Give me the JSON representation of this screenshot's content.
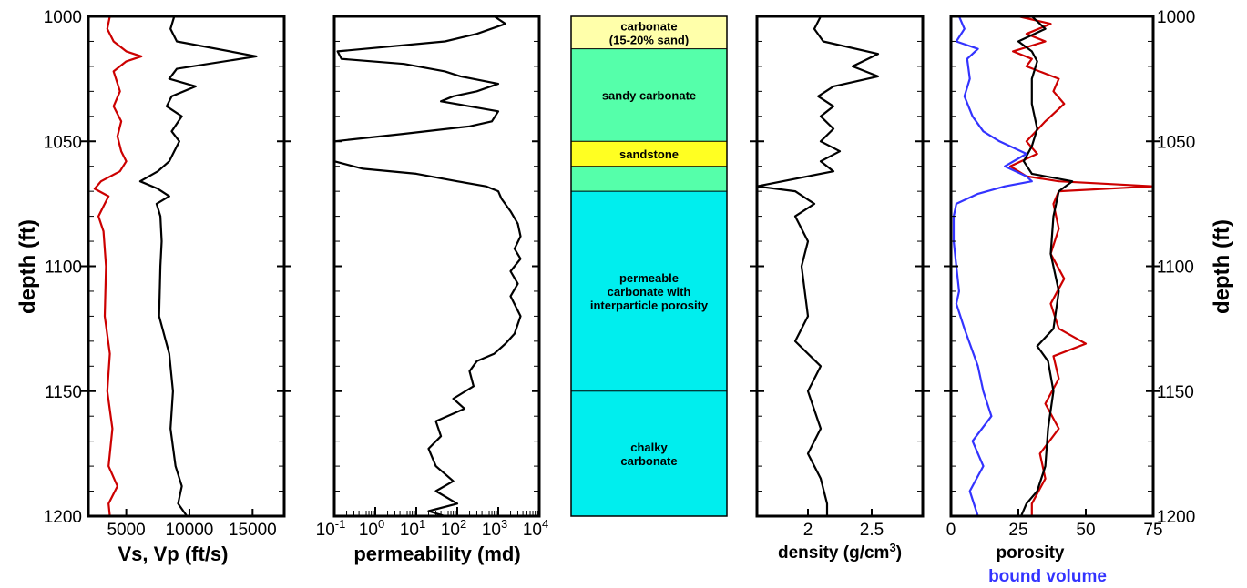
{
  "chart_data": [
    {
      "type": "line",
      "panel": "velocity",
      "ylabel": "depth (ft)",
      "xlabel": "Vs, Vp (ft/s)",
      "xlim": [
        2000,
        17500
      ],
      "ylim": [
        1000,
        1200
      ],
      "y_inverted": true,
      "xticks": [
        "5000",
        "10000",
        "15000"
      ],
      "yticks": [
        "1000",
        "1050",
        "1100",
        "1150",
        "1200"
      ],
      "series": [
        {
          "color": "#cc0000",
          "points": [
            [
              3700,
              1000
            ],
            [
              3500,
              1005
            ],
            [
              4000,
              1010
            ],
            [
              5000,
              1014
            ],
            [
              6200,
              1016
            ],
            [
              5000,
              1018
            ],
            [
              4000,
              1022
            ],
            [
              4500,
              1030
            ],
            [
              4000,
              1036
            ],
            [
              4600,
              1042
            ],
            [
              4300,
              1048
            ],
            [
              4600,
              1054
            ],
            [
              5000,
              1058
            ],
            [
              4500,
              1062
            ],
            [
              3000,
              1066
            ],
            [
              2500,
              1069
            ],
            [
              3600,
              1072
            ],
            [
              3200,
              1076
            ],
            [
              2800,
              1080
            ],
            [
              3200,
              1086
            ],
            [
              3400,
              1100
            ],
            [
              3300,
              1120
            ],
            [
              3700,
              1135
            ],
            [
              3500,
              1150
            ],
            [
              3900,
              1165
            ],
            [
              3600,
              1180
            ],
            [
              4300,
              1188
            ],
            [
              3600,
              1195
            ],
            [
              3700,
              1200
            ]
          ]
        },
        {
          "color": "#000000",
          "points": [
            [
              8800,
              1000
            ],
            [
              8500,
              1005
            ],
            [
              9000,
              1010
            ],
            [
              15300,
              1016
            ],
            [
              9000,
              1021
            ],
            [
              8400,
              1025
            ],
            [
              10500,
              1028
            ],
            [
              8600,
              1032
            ],
            [
              8200,
              1036
            ],
            [
              9400,
              1040
            ],
            [
              8600,
              1046
            ],
            [
              9200,
              1050
            ],
            [
              8800,
              1054
            ],
            [
              8400,
              1058
            ],
            [
              7500,
              1062
            ],
            [
              6100,
              1066
            ],
            [
              7500,
              1069
            ],
            [
              8400,
              1072
            ],
            [
              7400,
              1075
            ],
            [
              7700,
              1080
            ],
            [
              7800,
              1090
            ],
            [
              7700,
              1100
            ],
            [
              7600,
              1120
            ],
            [
              8400,
              1135
            ],
            [
              8700,
              1150
            ],
            [
              8500,
              1165
            ],
            [
              8900,
              1180
            ],
            [
              9400,
              1188
            ],
            [
              9100,
              1195
            ],
            [
              9800,
              1200
            ]
          ]
        }
      ]
    },
    {
      "type": "line",
      "panel": "permeability",
      "xlabel": "permeability (md)",
      "xscale": "log",
      "xlim": [
        0.1,
        10000
      ],
      "ylim": [
        1000,
        1200
      ],
      "xticks": [
        "10",
        "10",
        "10",
        "10",
        "10",
        "10"
      ],
      "xtick_exponents": [
        "-1",
        "0",
        "1",
        "2",
        "3",
        "4"
      ],
      "series": [
        {
          "color": "#000000",
          "points": [
            [
              800,
              1000
            ],
            [
              1500,
              1003
            ],
            [
              300,
              1007
            ],
            [
              50,
              1010
            ],
            [
              0.12,
              1014
            ],
            [
              0.15,
              1017
            ],
            [
              5,
              1019
            ],
            [
              50,
              1022
            ],
            [
              120,
              1024
            ],
            [
              1000,
              1027
            ],
            [
              300,
              1030
            ],
            [
              80,
              1032
            ],
            [
              40,
              1034
            ],
            [
              200,
              1036
            ],
            [
              1000,
              1038
            ],
            [
              700,
              1042
            ],
            [
              200,
              1044
            ],
            [
              5,
              1047
            ],
            [
              0.1,
              1050
            ]
          ],
          "gap_after": true
        },
        {
          "color": "#000000",
          "points": [
            [
              0.1,
              1058
            ],
            [
              0.5,
              1061
            ],
            [
              10,
              1063
            ],
            [
              100,
              1066
            ],
            [
              500,
              1068
            ],
            [
              1000,
              1070
            ],
            [
              1200,
              1073
            ],
            [
              2000,
              1078
            ],
            [
              3000,
              1083
            ],
            [
              3500,
              1088
            ],
            [
              2500,
              1093
            ],
            [
              3500,
              1097
            ],
            [
              2000,
              1102
            ],
            [
              3000,
              1107
            ],
            [
              2000,
              1112
            ],
            [
              3500,
              1120
            ],
            [
              2500,
              1127
            ],
            [
              1500,
              1131
            ],
            [
              800,
              1135
            ],
            [
              300,
              1138
            ],
            [
              200,
              1142
            ],
            [
              250,
              1148
            ],
            [
              80,
              1153
            ],
            [
              150,
              1157
            ],
            [
              30,
              1162
            ],
            [
              40,
              1168
            ],
            [
              20,
              1173
            ],
            [
              30,
              1180
            ],
            [
              80,
              1186
            ],
            [
              30,
              1190
            ],
            [
              100,
              1195
            ],
            [
              20,
              1198
            ],
            [
              50,
              1200
            ]
          ]
        }
      ]
    },
    {
      "type": "table",
      "panel": "lithology",
      "units": [
        {
          "label": "carbonate\n(15-20% sand)",
          "top": 1000,
          "base": 1013,
          "color": "#ffffaa"
        },
        {
          "label": "sandy carbonate",
          "top": 1013,
          "base": 1050,
          "color": "#55ffaa"
        },
        {
          "label": "sandstone",
          "top": 1050,
          "base": 1060,
          "color": "#ffff22"
        },
        {
          "label": "",
          "top": 1060,
          "base": 1070,
          "color": "#55ffaa"
        },
        {
          "label": "permeable\ncarbonate with\ninterparticle porosity",
          "top": 1070,
          "base": 1150,
          "color": "#00eeee"
        },
        {
          "label": "chalky\ncarbonate",
          "top": 1150,
          "base": 1200,
          "color": "#00eeee"
        }
      ]
    },
    {
      "type": "line",
      "panel": "density",
      "xlabel": "density (g/cm",
      "xlabel_superscript": "3",
      "xlabel_suffix": ")",
      "xlim": [
        1.6,
        2.9
      ],
      "ylim": [
        1000,
        1200
      ],
      "xticks": [
        "2",
        "2.5"
      ],
      "series": [
        {
          "color": "#000000",
          "points": [
            [
              2.1,
              1000
            ],
            [
              2.05,
              1005
            ],
            [
              2.12,
              1010
            ],
            [
              2.55,
              1015
            ],
            [
              2.35,
              1020
            ],
            [
              2.55,
              1024
            ],
            [
              2.2,
              1028
            ],
            [
              2.08,
              1032
            ],
            [
              2.2,
              1036
            ],
            [
              2.1,
              1040
            ],
            [
              2.2,
              1045
            ],
            [
              2.1,
              1050
            ],
            [
              2.25,
              1054
            ],
            [
              2.1,
              1058
            ],
            [
              2.2,
              1062
            ],
            [
              1.6,
              1068
            ],
            [
              1.9,
              1070
            ],
            [
              2.05,
              1075
            ],
            [
              1.9,
              1080
            ],
            [
              2.0,
              1090
            ],
            [
              1.95,
              1100
            ],
            [
              2.0,
              1120
            ],
            [
              1.9,
              1130
            ],
            [
              2.1,
              1140
            ],
            [
              2.0,
              1150
            ],
            [
              2.1,
              1165
            ],
            [
              2.0,
              1175
            ],
            [
              2.1,
              1185
            ],
            [
              2.15,
              1195
            ],
            [
              2.15,
              1200
            ]
          ]
        }
      ]
    },
    {
      "type": "line",
      "panel": "porosity",
      "xlabel": "porosity",
      "xlabel2": "bound volume",
      "xlabel2_color": "#3333ff",
      "xlim": [
        0,
        75
      ],
      "ylim": [
        1000,
        1200
      ],
      "ylabel": "depth (ft)",
      "xticks": [
        "0",
        "25",
        "50",
        "75"
      ],
      "yticks": [
        "1000",
        "1050",
        "1100",
        "1150",
        "1200"
      ],
      "series": [
        {
          "color": "#cc0000",
          "points": [
            [
              25,
              1000
            ],
            [
              37,
              1003
            ],
            [
              28,
              1007
            ],
            [
              35,
              1010
            ],
            [
              23,
              1014
            ],
            [
              30,
              1017
            ],
            [
              28,
              1020
            ],
            [
              40,
              1025
            ],
            [
              38,
              1030
            ],
            [
              42,
              1035
            ],
            [
              35,
              1042
            ],
            [
              28,
              1050
            ],
            [
              32,
              1055
            ],
            [
              22,
              1060
            ],
            [
              28,
              1064
            ],
            [
              40,
              1066
            ],
            [
              75,
              1068
            ],
            [
              40,
              1070
            ],
            [
              38,
              1075
            ],
            [
              40,
              1085
            ],
            [
              37,
              1095
            ],
            [
              42,
              1105
            ],
            [
              37,
              1115
            ],
            [
              40,
              1125
            ],
            [
              50,
              1131
            ],
            [
              38,
              1136
            ],
            [
              40,
              1145
            ],
            [
              35,
              1155
            ],
            [
              40,
              1165
            ],
            [
              33,
              1175
            ],
            [
              35,
              1185
            ],
            [
              30,
              1195
            ],
            [
              30,
              1200
            ]
          ]
        },
        {
          "color": "#000000",
          "points": [
            [
              30,
              1000
            ],
            [
              35,
              1005
            ],
            [
              25,
              1010
            ],
            [
              30,
              1014
            ],
            [
              32,
              1018
            ],
            [
              30,
              1025
            ],
            [
              30,
              1035
            ],
            [
              32,
              1045
            ],
            [
              30,
              1052
            ],
            [
              27,
              1058
            ],
            [
              30,
              1063
            ],
            [
              45,
              1066
            ],
            [
              40,
              1070
            ],
            [
              38,
              1080
            ],
            [
              37,
              1095
            ],
            [
              40,
              1110
            ],
            [
              38,
              1125
            ],
            [
              32,
              1132
            ],
            [
              36,
              1138
            ],
            [
              38,
              1150
            ],
            [
              36,
              1165
            ],
            [
              35,
              1180
            ],
            [
              32,
              1190
            ],
            [
              28,
              1195
            ],
            [
              26,
              1200
            ]
          ]
        },
        {
          "color": "#3333ff",
          "points": [
            [
              3,
              1000
            ],
            [
              5,
              1005
            ],
            [
              2,
              1010
            ],
            [
              10,
              1013
            ],
            [
              6,
              1017
            ],
            [
              7,
              1025
            ],
            [
              5,
              1032
            ],
            [
              8,
              1040
            ],
            [
              12,
              1046
            ],
            [
              18,
              1050
            ],
            [
              28,
              1055
            ],
            [
              20,
              1060
            ],
            [
              28,
              1064
            ],
            [
              30,
              1066
            ],
            [
              20,
              1068
            ],
            [
              10,
              1071
            ],
            [
              2,
              1075
            ],
            [
              1,
              1080
            ],
            [
              1,
              1090
            ],
            [
              2,
              1100
            ],
            [
              3,
              1110
            ],
            [
              2,
              1115
            ],
            [
              5,
              1125
            ],
            [
              10,
              1140
            ],
            [
              12,
              1150
            ],
            [
              15,
              1160
            ],
            [
              8,
              1170
            ],
            [
              12,
              1180
            ],
            [
              7,
              1190
            ],
            [
              10,
              1200
            ]
          ]
        }
      ]
    }
  ]
}
